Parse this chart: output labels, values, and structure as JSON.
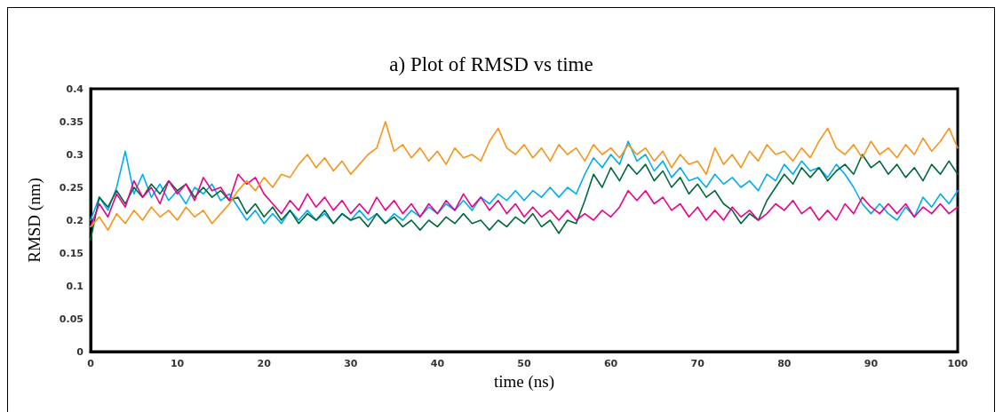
{
  "chart_data": {
    "type": "line",
    "title": "a) Plot of RMSD vs time",
    "xlabel": "time (ns)",
    "ylabel": "RMSD (nm)",
    "x": [
      0,
      1,
      2,
      3,
      4,
      5,
      6,
      7,
      8,
      9,
      10,
      11,
      12,
      13,
      14,
      15,
      16,
      17,
      18,
      19,
      20,
      21,
      22,
      23,
      24,
      25,
      26,
      27,
      28,
      29,
      30,
      31,
      32,
      33,
      34,
      35,
      36,
      37,
      38,
      39,
      40,
      41,
      42,
      43,
      44,
      45,
      46,
      47,
      48,
      49,
      50,
      51,
      52,
      53,
      54,
      55,
      56,
      57,
      58,
      59,
      60,
      61,
      62,
      63,
      64,
      65,
      66,
      67,
      68,
      69,
      70,
      71,
      72,
      73,
      74,
      75,
      76,
      77,
      78,
      79,
      80,
      81,
      82,
      83,
      84,
      85,
      86,
      87,
      88,
      89,
      90,
      91,
      92,
      93,
      94,
      95,
      96,
      97,
      98,
      99,
      100
    ],
    "xlim": [
      0,
      100
    ],
    "xticks": [
      0,
      10,
      20,
      30,
      40,
      50,
      60,
      70,
      80,
      90,
      100
    ],
    "ylim": [
      0,
      0.4
    ],
    "yticks": [
      0,
      0.05,
      0.1,
      0.15,
      0.2,
      0.25,
      0.3,
      0.35,
      0.4
    ],
    "grid": false,
    "marker": "none",
    "line_style": "solid",
    "series": [
      {
        "color": "#00aeef",
        "values": [
          0.2,
          0.235,
          0.215,
          0.25,
          0.305,
          0.24,
          0.27,
          0.235,
          0.255,
          0.23,
          0.245,
          0.225,
          0.25,
          0.24,
          0.255,
          0.23,
          0.24,
          0.22,
          0.2,
          0.215,
          0.195,
          0.21,
          0.195,
          0.215,
          0.2,
          0.215,
          0.2,
          0.21,
          0.195,
          0.21,
          0.2,
          0.215,
          0.2,
          0.21,
          0.195,
          0.21,
          0.2,
          0.215,
          0.205,
          0.22,
          0.21,
          0.225,
          0.215,
          0.23,
          0.215,
          0.235,
          0.225,
          0.24,
          0.23,
          0.245,
          0.23,
          0.245,
          0.235,
          0.25,
          0.235,
          0.25,
          0.24,
          0.27,
          0.295,
          0.28,
          0.3,
          0.285,
          0.32,
          0.29,
          0.3,
          0.275,
          0.29,
          0.265,
          0.28,
          0.26,
          0.265,
          0.25,
          0.27,
          0.255,
          0.265,
          0.25,
          0.26,
          0.245,
          0.27,
          0.26,
          0.285,
          0.27,
          0.29,
          0.275,
          0.28,
          0.265,
          0.285,
          0.27,
          0.25,
          0.225,
          0.21,
          0.225,
          0.21,
          0.2,
          0.22,
          0.205,
          0.235,
          0.22,
          0.24,
          0.225,
          0.245
        ]
      },
      {
        "color": "#006838",
        "values": [
          0.17,
          0.235,
          0.22,
          0.245,
          0.225,
          0.25,
          0.235,
          0.255,
          0.24,
          0.26,
          0.245,
          0.255,
          0.235,
          0.25,
          0.235,
          0.245,
          0.23,
          0.235,
          0.21,
          0.225,
          0.205,
          0.22,
          0.2,
          0.215,
          0.195,
          0.21,
          0.2,
          0.215,
          0.195,
          0.21,
          0.2,
          0.205,
          0.19,
          0.21,
          0.195,
          0.205,
          0.19,
          0.2,
          0.185,
          0.2,
          0.19,
          0.205,
          0.195,
          0.21,
          0.195,
          0.2,
          0.185,
          0.2,
          0.19,
          0.205,
          0.195,
          0.21,
          0.19,
          0.2,
          0.18,
          0.2,
          0.195,
          0.23,
          0.27,
          0.25,
          0.28,
          0.26,
          0.285,
          0.27,
          0.285,
          0.26,
          0.275,
          0.25,
          0.265,
          0.24,
          0.255,
          0.235,
          0.245,
          0.225,
          0.215,
          0.195,
          0.21,
          0.2,
          0.23,
          0.25,
          0.27,
          0.255,
          0.28,
          0.265,
          0.28,
          0.26,
          0.275,
          0.285,
          0.27,
          0.3,
          0.28,
          0.29,
          0.27,
          0.285,
          0.265,
          0.28,
          0.26,
          0.285,
          0.27,
          0.29,
          0.27
        ]
      },
      {
        "color": "#ec008c",
        "values": [
          0.19,
          0.225,
          0.205,
          0.24,
          0.22,
          0.26,
          0.235,
          0.25,
          0.225,
          0.26,
          0.24,
          0.255,
          0.23,
          0.265,
          0.245,
          0.25,
          0.23,
          0.27,
          0.255,
          0.265,
          0.24,
          0.225,
          0.21,
          0.23,
          0.215,
          0.24,
          0.22,
          0.235,
          0.215,
          0.23,
          0.21,
          0.225,
          0.21,
          0.235,
          0.215,
          0.23,
          0.21,
          0.225,
          0.205,
          0.225,
          0.21,
          0.23,
          0.215,
          0.24,
          0.22,
          0.235,
          0.215,
          0.23,
          0.21,
          0.225,
          0.205,
          0.22,
          0.205,
          0.215,
          0.2,
          0.215,
          0.2,
          0.21,
          0.2,
          0.215,
          0.205,
          0.22,
          0.245,
          0.23,
          0.245,
          0.225,
          0.235,
          0.215,
          0.225,
          0.205,
          0.22,
          0.2,
          0.215,
          0.2,
          0.22,
          0.205,
          0.215,
          0.2,
          0.21,
          0.225,
          0.215,
          0.23,
          0.21,
          0.22,
          0.2,
          0.215,
          0.2,
          0.225,
          0.21,
          0.235,
          0.22,
          0.21,
          0.225,
          0.21,
          0.225,
          0.205,
          0.22,
          0.21,
          0.225,
          0.21,
          0.22
        ]
      },
      {
        "color": "#f7941d",
        "values": [
          0.19,
          0.205,
          0.185,
          0.21,
          0.195,
          0.215,
          0.2,
          0.22,
          0.205,
          0.215,
          0.2,
          0.22,
          0.205,
          0.215,
          0.195,
          0.21,
          0.225,
          0.245,
          0.26,
          0.245,
          0.265,
          0.25,
          0.27,
          0.265,
          0.285,
          0.3,
          0.28,
          0.295,
          0.275,
          0.29,
          0.27,
          0.285,
          0.3,
          0.31,
          0.35,
          0.305,
          0.315,
          0.295,
          0.31,
          0.29,
          0.305,
          0.285,
          0.31,
          0.295,
          0.3,
          0.29,
          0.32,
          0.34,
          0.31,
          0.3,
          0.315,
          0.295,
          0.31,
          0.29,
          0.315,
          0.3,
          0.31,
          0.29,
          0.315,
          0.3,
          0.31,
          0.295,
          0.315,
          0.3,
          0.31,
          0.29,
          0.305,
          0.28,
          0.3,
          0.285,
          0.29,
          0.27,
          0.31,
          0.285,
          0.3,
          0.28,
          0.305,
          0.29,
          0.315,
          0.3,
          0.305,
          0.29,
          0.31,
          0.295,
          0.32,
          0.34,
          0.31,
          0.3,
          0.315,
          0.295,
          0.32,
          0.3,
          0.31,
          0.295,
          0.315,
          0.3,
          0.325,
          0.305,
          0.32,
          0.34,
          0.31
        ]
      }
    ]
  }
}
